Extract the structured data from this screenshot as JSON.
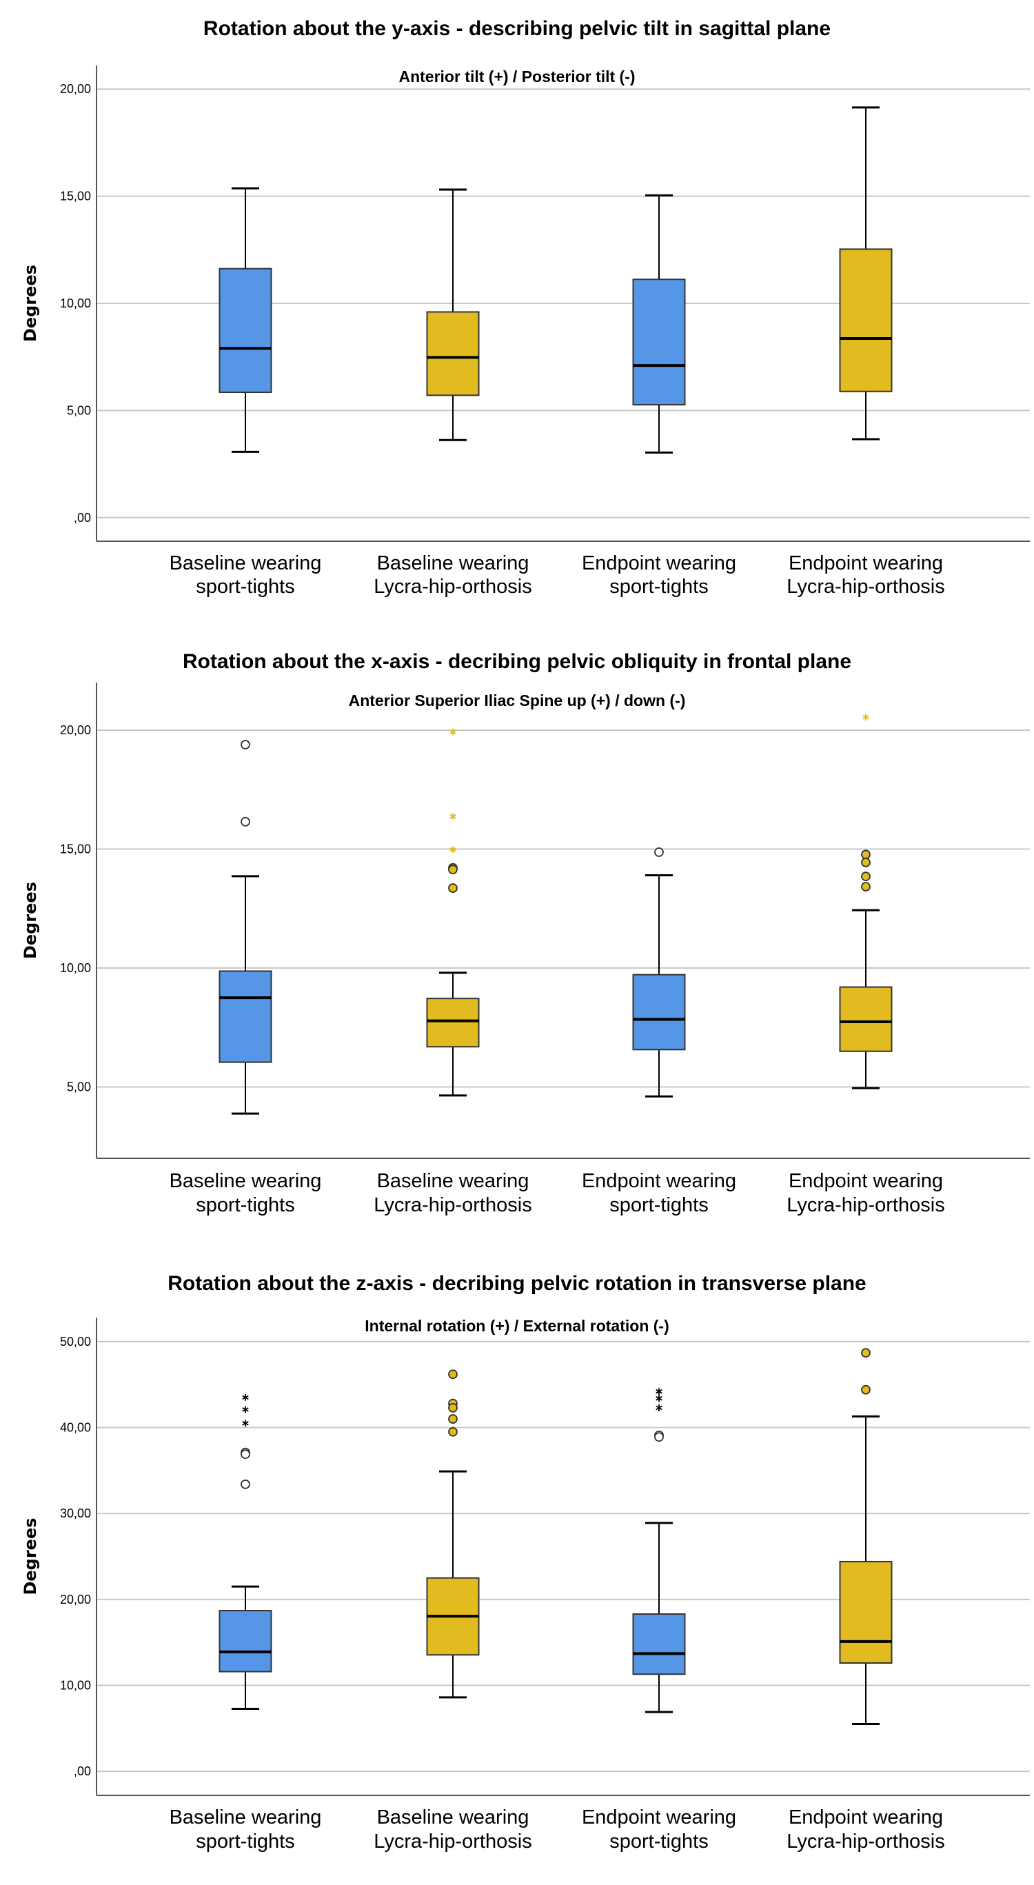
{
  "colors": {
    "sport_tights": "#5596E6",
    "lycra_orthosis": "#E1BB1F",
    "grid": "#C8C8C8"
  },
  "chart_data": [
    {
      "type": "boxplot",
      "title": "Rotation about the y-axis  -   describing pelvic tilt in sagittal plane",
      "subtitle": "Anterior tilt (+) / Posterior tilt (-)",
      "ylabel": "Degrees",
      "ylim": [
        -1.1,
        21.1
      ],
      "yticks": [
        0,
        5,
        10,
        15,
        20
      ],
      "ytick_labels": [
        ",00",
        "5,00",
        "10,00",
        "15,00",
        "20,00"
      ],
      "grid": true,
      "categories": [
        {
          "line1": "Baseline wearing",
          "line2": "sport-tights",
          "color": "#5596E6"
        },
        {
          "line1": "Baseline wearing",
          "line2": "Lycra-hip-orthosis",
          "color": "#E1BB1F"
        },
        {
          "line1": "Endpoint wearing",
          "line2": "sport-tights",
          "color": "#5596E6"
        },
        {
          "line1": "Endpoint wearing",
          "line2": "Lycra-hip-orthosis",
          "color": "#E1BB1F"
        }
      ],
      "boxes": [
        {
          "min": 3.07,
          "q1": 5.85,
          "median": 7.9,
          "q3": 11.62,
          "max": 15.37,
          "outliers": []
        },
        {
          "min": 3.62,
          "q1": 5.71,
          "median": 7.48,
          "q3": 9.6,
          "max": 15.31,
          "outliers": []
        },
        {
          "min": 3.04,
          "q1": 5.27,
          "median": 7.1,
          "q3": 11.12,
          "max": 15.04,
          "outliers": []
        },
        {
          "min": 3.66,
          "q1": 5.89,
          "median": 8.36,
          "q3": 12.53,
          "max": 19.14,
          "outliers": []
        }
      ]
    },
    {
      "type": "boxplot",
      "title": "Rotation about the x-axis  -  decribing pelvic obliquity in frontal plane",
      "subtitle": "Anterior Superior Iliac Spine  up (+) / down (-)",
      "ylabel": "Degrees",
      "ylim": [
        2.0,
        22.0
      ],
      "yticks": [
        5,
        10,
        15,
        20
      ],
      "ytick_labels": [
        "5,00",
        "10,00",
        "15,00",
        "20,00"
      ],
      "grid": true,
      "categories": [
        {
          "line1": "Baseline wearing",
          "line2": "sport-tights",
          "color": "#5596E6"
        },
        {
          "line1": "Baseline wearing",
          "line2": "Lycra-hip-orthosis",
          "color": "#E1BB1F"
        },
        {
          "line1": "Endpoint wearing",
          "line2": "sport-tights",
          "color": "#5596E6"
        },
        {
          "line1": "Endpoint wearing",
          "line2": "Lycra-hip-orthosis",
          "color": "#E1BB1F"
        }
      ],
      "boxes": [
        {
          "min": 3.88,
          "q1": 6.04,
          "median": 8.75,
          "q3": 9.87,
          "max": 13.86,
          "outliers": [
            {
              "value": 19.39,
              "marker": "circle"
            },
            {
              "value": 16.15,
              "marker": "circle"
            }
          ]
        },
        {
          "min": 4.64,
          "q1": 6.69,
          "median": 7.78,
          "q3": 8.72,
          "max": 9.8,
          "outliers": [
            {
              "value": 19.92,
              "marker": "star"
            },
            {
              "value": 16.37,
              "marker": "star"
            },
            {
              "value": 14.98,
              "marker": "star"
            },
            {
              "value": 14.21,
              "marker": "circle"
            },
            {
              "value": 14.14,
              "marker": "circle"
            },
            {
              "value": 13.36,
              "marker": "circle"
            }
          ]
        },
        {
          "min": 4.6,
          "q1": 6.57,
          "median": 7.84,
          "q3": 9.72,
          "max": 13.9,
          "outliers": [
            {
              "value": 14.87,
              "marker": "circle"
            }
          ]
        },
        {
          "min": 4.95,
          "q1": 6.5,
          "median": 7.74,
          "q3": 9.2,
          "max": 12.43,
          "outliers": [
            {
              "value": 20.54,
              "marker": "star"
            },
            {
              "value": 14.77,
              "marker": "circle"
            },
            {
              "value": 14.44,
              "marker": "circle"
            },
            {
              "value": 13.85,
              "marker": "circle"
            },
            {
              "value": 13.42,
              "marker": "circle"
            }
          ]
        }
      ]
    },
    {
      "type": "boxplot",
      "title": "Rotation about the z-axis  -  decribing pelvic rotation in transverse plane",
      "subtitle": "Internal rotation (+) / External rotation (-)",
      "ylabel": "Degrees",
      "ylim": [
        -2.8,
        52.8
      ],
      "yticks": [
        0,
        10,
        20,
        30,
        40,
        50
      ],
      "ytick_labels": [
        ",00",
        "10,00",
        "20,00",
        "30,00",
        "40,00",
        "50,00"
      ],
      "grid": true,
      "categories": [
        {
          "line1": "Baseline wearing",
          "line2": "sport-tights",
          "color": "#5596E6"
        },
        {
          "line1": "Baseline wearing",
          "line2": "Lycra-hip-orthosis",
          "color": "#E1BB1F"
        },
        {
          "line1": "Endpoint wearing",
          "line2": "sport-tights",
          "color": "#5596E6"
        },
        {
          "line1": "Endpoint wearing",
          "line2": "Lycra-hip-orthosis",
          "color": "#E1BB1F"
        }
      ],
      "boxes": [
        {
          "min": 7.27,
          "q1": 11.6,
          "median": 13.9,
          "q3": 18.7,
          "max": 21.5,
          "outliers": [
            {
              "value": 43.5,
              "marker": "star"
            },
            {
              "value": 42.1,
              "marker": "star"
            },
            {
              "value": 40.5,
              "marker": "star"
            },
            {
              "value": 37.1,
              "marker": "circle"
            },
            {
              "value": 36.9,
              "marker": "circle"
            },
            {
              "value": 33.4,
              "marker": "circle"
            }
          ]
        },
        {
          "min": 8.6,
          "q1": 13.55,
          "median": 18.05,
          "q3": 22.5,
          "max": 34.9,
          "outliers": [
            {
              "value": 46.2,
              "marker": "circle"
            },
            {
              "value": 42.8,
              "marker": "circle"
            },
            {
              "value": 42.3,
              "marker": "circle"
            },
            {
              "value": 41.0,
              "marker": "circle"
            },
            {
              "value": 39.5,
              "marker": "circle"
            }
          ]
        },
        {
          "min": 6.9,
          "q1": 11.3,
          "median": 13.7,
          "q3": 18.3,
          "max": 28.9,
          "outliers": [
            {
              "value": 44.2,
              "marker": "star"
            },
            {
              "value": 43.4,
              "marker": "star"
            },
            {
              "value": 42.3,
              "marker": "star"
            },
            {
              "value": 39.1,
              "marker": "circle"
            },
            {
              "value": 38.9,
              "marker": "circle"
            }
          ]
        },
        {
          "min": 5.5,
          "q1": 12.6,
          "median": 15.1,
          "q3": 24.4,
          "max": 41.3,
          "outliers": [
            {
              "value": 48.7,
              "marker": "circle"
            },
            {
              "value": 44.4,
              "marker": "circle"
            }
          ]
        }
      ]
    }
  ]
}
